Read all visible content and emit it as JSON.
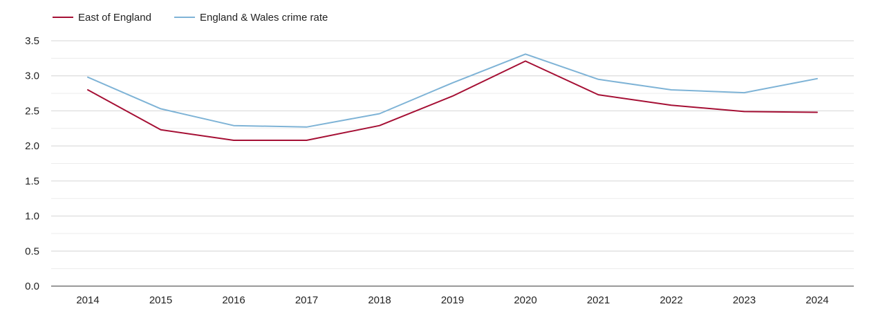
{
  "chart_data": {
    "type": "line",
    "x": [
      "2014",
      "2015",
      "2016",
      "2017",
      "2018",
      "2019",
      "2020",
      "2021",
      "2022",
      "2023",
      "2024"
    ],
    "series": [
      {
        "name": "East of England",
        "color": "#a50f34",
        "values": [
          2.8,
          2.23,
          2.08,
          2.08,
          2.29,
          2.71,
          3.21,
          2.73,
          2.58,
          2.49,
          2.48
        ]
      },
      {
        "name": "England & Wales crime rate",
        "color": "#7eb3d6",
        "values": [
          2.98,
          2.53,
          2.29,
          2.27,
          2.46,
          2.9,
          3.31,
          2.95,
          2.8,
          2.76,
          2.96
        ]
      }
    ],
    "y_ticks": [
      "0.0",
      "0.5",
      "1.0",
      "1.5",
      "2.0",
      "2.5",
      "3.0",
      "3.5"
    ],
    "ylim": [
      0,
      3.5
    ],
    "grid": true,
    "legend_position": "top-left"
  }
}
